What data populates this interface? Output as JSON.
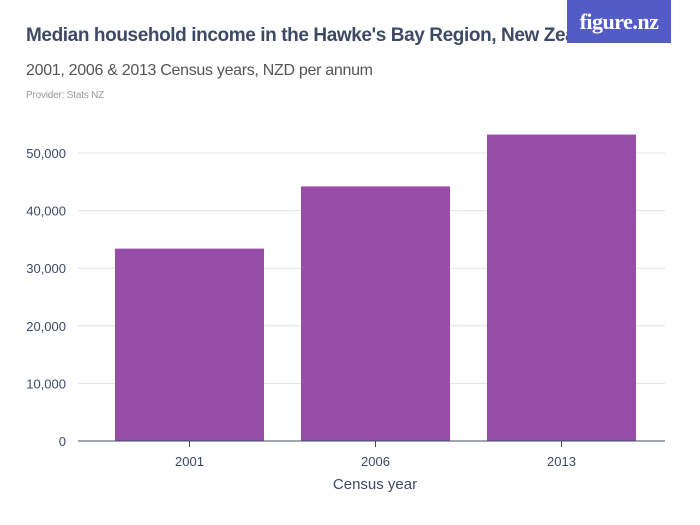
{
  "header": {
    "title": "Median household income in the Hawke's Bay Region, New Zealand",
    "subtitle": "2001, 2006 & 2013 Census years, NZD per annum",
    "provider": "Provider: Stats NZ",
    "logo": "figure.nz"
  },
  "chart_data": {
    "type": "bar",
    "title": "Median household income in the Hawke's Bay Region, New Zealand",
    "subtitle": "2001, 2006 & 2013 Census years, NZD per annum",
    "xlabel": "Census year",
    "ylabel": "",
    "categories": [
      "2001",
      "2006",
      "2013"
    ],
    "values": [
      33400,
      44200,
      53200
    ],
    "ylim": [
      0,
      55000
    ],
    "yticks": [
      0,
      10000,
      20000,
      30000,
      40000,
      50000
    ],
    "ytick_labels": [
      "0",
      "10,000",
      "20,000",
      "30,000",
      "40,000",
      "50,000"
    ],
    "grid": true,
    "bar_color": "#984ea9"
  }
}
